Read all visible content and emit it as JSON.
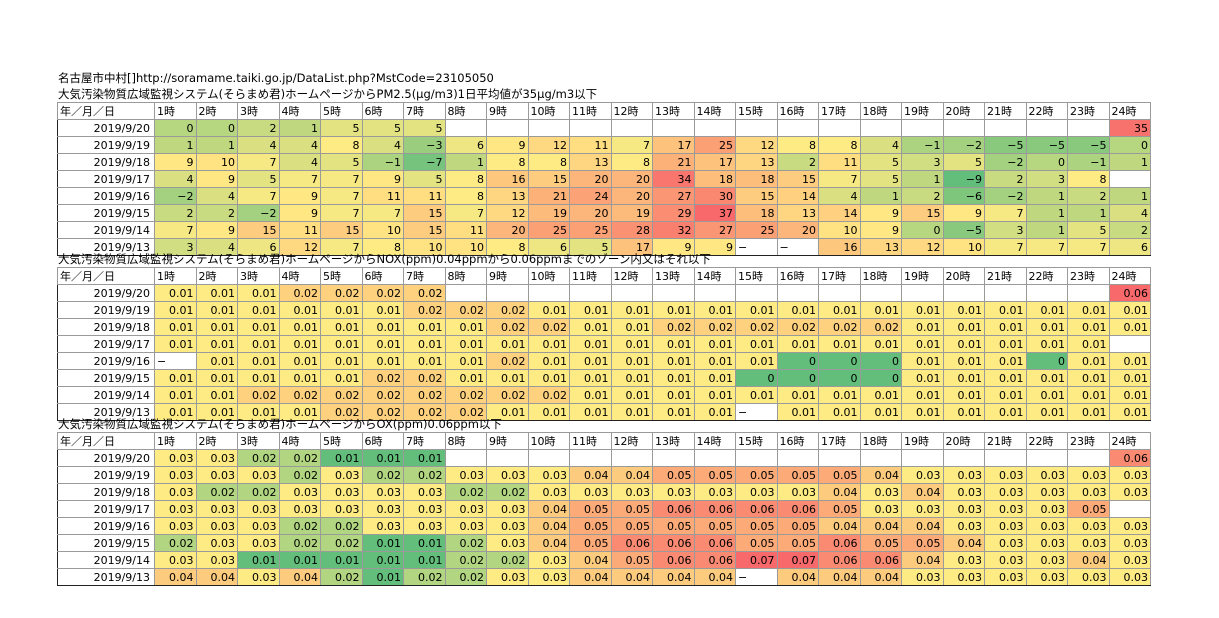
{
  "header": {
    "source_line": "名古屋市中村[]http://soramame.taiki.go.jp/DataList.php?MstCode=23105050"
  },
  "columns": [
    "年／月／日",
    "1時",
    "2時",
    "3時",
    "4時",
    "5時",
    "6時",
    "7時",
    "8時",
    "9時",
    "10時",
    "11時",
    "12時",
    "13時",
    "14時",
    "15時",
    "16時",
    "17時",
    "18時",
    "19時",
    "20時",
    "21時",
    "22時",
    "23時",
    "24時"
  ],
  "sections": [
    {
      "title": "大気汚染物質広域監視システム(そらまめ君)ホームページからPM2.5(μg/m3)1日平均値が35μg/m3以下",
      "rows": [
        {
          "date": "2019/9/20",
          "values": [
            "0",
            "0",
            "2",
            "1",
            "5",
            "5",
            "5",
            "",
            "",
            "",
            "",
            "",
            "",
            "",
            "",
            "",
            "",
            "",
            "",
            "",
            "",
            "",
            "",
            "35"
          ]
        },
        {
          "date": "2019/9/19",
          "values": [
            "1",
            "1",
            "4",
            "4",
            "8",
            "4",
            "−3",
            "6",
            "9",
            "12",
            "11",
            "7",
            "17",
            "25",
            "12",
            "8",
            "8",
            "4",
            "−1",
            "−2",
            "−5",
            "−5",
            "−5",
            "0"
          ]
        },
        {
          "date": "2019/9/18",
          "values": [
            "9",
            "10",
            "7",
            "4",
            "5",
            "−1",
            "−7",
            "1",
            "8",
            "8",
            "13",
            "8",
            "21",
            "17",
            "13",
            "2",
            "11",
            "5",
            "3",
            "5",
            "−2",
            "0",
            "−1",
            "1"
          ]
        },
        {
          "date": "2019/9/17",
          "values": [
            "4",
            "9",
            "5",
            "7",
            "7",
            "9",
            "5",
            "8",
            "16",
            "15",
            "20",
            "20",
            "34",
            "18",
            "18",
            "15",
            "7",
            "5",
            "1",
            "−9",
            "2",
            "3",
            "8",
            ""
          ]
        },
        {
          "date": "2019/9/16",
          "values": [
            "−2",
            "4",
            "7",
            "9",
            "7",
            "11",
            "11",
            "8",
            "13",
            "21",
            "24",
            "20",
            "27",
            "30",
            "15",
            "14",
            "4",
            "1",
            "2",
            "−6",
            "−2",
            "1",
            "2",
            "1"
          ]
        },
        {
          "date": "2019/9/15",
          "values": [
            "2",
            "2",
            "−2",
            "9",
            "7",
            "7",
            "15",
            "7",
            "12",
            "19",
            "20",
            "19",
            "29",
            "37",
            "18",
            "13",
            "14",
            "9",
            "15",
            "9",
            "7",
            "1",
            "1",
            "4"
          ]
        },
        {
          "date": "2019/9/14",
          "values": [
            "7",
            "9",
            "15",
            "11",
            "15",
            "10",
            "15",
            "11",
            "20",
            "25",
            "25",
            "28",
            "32",
            "27",
            "25",
            "20",
            "10",
            "9",
            "0",
            "−5",
            "3",
            "1",
            "5",
            "2"
          ]
        },
        {
          "date": "2019/9/13",
          "values": [
            "3",
            "4",
            "6",
            "12",
            "7",
            "8",
            "10",
            "10",
            "8",
            "6",
            "5",
            "17",
            "9",
            "9",
            "−",
            "−",
            "16",
            "13",
            "12",
            "10",
            "7",
            "7",
            "7",
            "6"
          ]
        }
      ]
    },
    {
      "title": "大気汚染物質広域監視システム(そらまめ君)ホームページからNOX(ppm)0.04ppmから0.06ppmまでのゾーン内又はそれ以下",
      "rows": [
        {
          "date": "2019/9/20",
          "values": [
            "0.01",
            "0.01",
            "0.01",
            "0.02",
            "0.02",
            "0.02",
            "0.02",
            "",
            "",
            "",
            "",
            "",
            "",
            "",
            "",
            "",
            "",
            "",
            "",
            "",
            "",
            "",
            "",
            "0.06"
          ]
        },
        {
          "date": "2019/9/19",
          "values": [
            "0.01",
            "0.01",
            "0.01",
            "0.01",
            "0.01",
            "0.01",
            "0.02",
            "0.02",
            "0.02",
            "0.01",
            "0.01",
            "0.01",
            "0.01",
            "0.01",
            "0.01",
            "0.01",
            "0.01",
            "0.01",
            "0.01",
            "0.01",
            "0.01",
            "0.01",
            "0.01",
            "0.01"
          ]
        },
        {
          "date": "2019/9/18",
          "values": [
            "0.01",
            "0.01",
            "0.01",
            "0.01",
            "0.01",
            "0.01",
            "0.01",
            "0.01",
            "0.02",
            "0.02",
            "0.01",
            "0.01",
            "0.02",
            "0.02",
            "0.02",
            "0.02",
            "0.02",
            "0.02",
            "0.01",
            "0.01",
            "0.01",
            "0.01",
            "0.01",
            "0.01"
          ]
        },
        {
          "date": "2019/9/17",
          "values": [
            "0.01",
            "0.01",
            "0.01",
            "0.01",
            "0.01",
            "0.01",
            "0.01",
            "0.01",
            "0.01",
            "0.01",
            "0.01",
            "0.01",
            "0.01",
            "0.01",
            "0.01",
            "0.01",
            "0.01",
            "0.01",
            "0.01",
            "0.01",
            "0.01",
            "0.01",
            "0.01",
            ""
          ]
        },
        {
          "date": "2019/9/16",
          "values": [
            "−",
            "0.01",
            "0.01",
            "0.01",
            "0.01",
            "0.01",
            "0.01",
            "0.01",
            "0.02",
            "0.01",
            "0.01",
            "0.01",
            "0.01",
            "0.01",
            "0.01",
            "0",
            "0",
            "0",
            "0.01",
            "0.01",
            "0.01",
            "0",
            "0.01",
            "0.01"
          ]
        },
        {
          "date": "2019/9/15",
          "values": [
            "0.01",
            "0.01",
            "0.01",
            "0.01",
            "0.01",
            "0.02",
            "0.02",
            "0.01",
            "0.01",
            "0.01",
            "0.01",
            "0.01",
            "0.01",
            "0.01",
            "0",
            "0",
            "0",
            "0",
            "0.01",
            "0.01",
            "0.01",
            "0.01",
            "0.01",
            "0.01"
          ]
        },
        {
          "date": "2019/9/14",
          "values": [
            "0.01",
            "0.01",
            "0.02",
            "0.02",
            "0.02",
            "0.02",
            "0.02",
            "0.02",
            "0.02",
            "0.02",
            "0.01",
            "0.01",
            "0.01",
            "0.01",
            "0.01",
            "0.01",
            "0.01",
            "0.01",
            "0.01",
            "0.01",
            "0.01",
            "0.01",
            "0.01",
            "0.01"
          ]
        },
        {
          "date": "2019/9/13",
          "values": [
            "0.01",
            "0.01",
            "0.01",
            "0.01",
            "0.02",
            "0.02",
            "0.02",
            "0.02",
            "0.01",
            "0.01",
            "0.01",
            "0.01",
            "0.01",
            "0.01",
            "−",
            "0.01",
            "0.01",
            "0.01",
            "0.01",
            "0.01",
            "0.01",
            "0.01",
            "0.01",
            "0.01"
          ]
        }
      ]
    },
    {
      "title": "大気汚染物質広域監視システム(そらまめ君)ホームページからOX(ppm)0.06ppm以下",
      "rows": [
        {
          "date": "2019/9/20",
          "values": [
            "0.03",
            "0.03",
            "0.02",
            "0.02",
            "0.01",
            "0.01",
            "0.01",
            "",
            "",
            "",
            "",
            "",
            "",
            "",
            "",
            "",
            "",
            "",
            "",
            "",
            "",
            "",
            "",
            "0.06"
          ]
        },
        {
          "date": "2019/9/19",
          "values": [
            "0.03",
            "0.03",
            "0.03",
            "0.02",
            "0.03",
            "0.02",
            "0.02",
            "0.03",
            "0.03",
            "0.03",
            "0.04",
            "0.04",
            "0.05",
            "0.05",
            "0.05",
            "0.05",
            "0.05",
            "0.04",
            "0.03",
            "0.03",
            "0.03",
            "0.03",
            "0.03",
            "0.03"
          ]
        },
        {
          "date": "2019/9/18",
          "values": [
            "0.03",
            "0.02",
            "0.02",
            "0.03",
            "0.03",
            "0.03",
            "0.03",
            "0.02",
            "0.02",
            "0.03",
            "0.03",
            "0.03",
            "0.03",
            "0.03",
            "0.03",
            "0.03",
            "0.04",
            "0.03",
            "0.04",
            "0.03",
            "0.03",
            "0.03",
            "0.03",
            "0.03"
          ]
        },
        {
          "date": "2019/9/17",
          "values": [
            "0.03",
            "0.03",
            "0.03",
            "0.03",
            "0.03",
            "0.03",
            "0.03",
            "0.03",
            "0.03",
            "0.04",
            "0.05",
            "0.05",
            "0.06",
            "0.06",
            "0.06",
            "0.06",
            "0.05",
            "0.03",
            "0.03",
            "0.03",
            "0.03",
            "0.03",
            "0.05",
            ""
          ]
        },
        {
          "date": "2019/9/16",
          "values": [
            "0.03",
            "0.03",
            "0.03",
            "0.02",
            "0.02",
            "0.03",
            "0.03",
            "0.03",
            "0.03",
            "0.04",
            "0.05",
            "0.05",
            "0.05",
            "0.05",
            "0.05",
            "0.05",
            "0.04",
            "0.04",
            "0.04",
            "0.03",
            "0.03",
            "0.03",
            "0.03",
            "0.03"
          ]
        },
        {
          "date": "2019/9/15",
          "values": [
            "0.02",
            "0.03",
            "0.03",
            "0.02",
            "0.02",
            "0.01",
            "0.01",
            "0.02",
            "0.03",
            "0.04",
            "0.05",
            "0.06",
            "0.06",
            "0.06",
            "0.05",
            "0.05",
            "0.06",
            "0.05",
            "0.05",
            "0.04",
            "0.03",
            "0.03",
            "0.03",
            "0.03"
          ]
        },
        {
          "date": "2019/9/14",
          "values": [
            "0.03",
            "0.03",
            "0.01",
            "0.01",
            "0.01",
            "0.01",
            "0.01",
            "0.02",
            "0.02",
            "0.03",
            "0.04",
            "0.05",
            "0.06",
            "0.06",
            "0.07",
            "0.07",
            "0.06",
            "0.06",
            "0.04",
            "0.03",
            "0.03",
            "0.03",
            "0.04",
            "0.03"
          ]
        },
        {
          "date": "2019/9/13",
          "values": [
            "0.04",
            "0.04",
            "0.03",
            "0.04",
            "0.02",
            "0.01",
            "0.02",
            "0.02",
            "0.03",
            "0.03",
            "0.04",
            "0.04",
            "0.04",
            "0.04",
            "−",
            "0.04",
            "0.04",
            "0.04",
            "0.03",
            "0.03",
            "0.03",
            "0.03",
            "0.03",
            "0.03"
          ]
        }
      ]
    }
  ],
  "color_scale": {
    "low": "#63be7b",
    "mid": "#ffeb84",
    "high": "#f8696b"
  }
}
